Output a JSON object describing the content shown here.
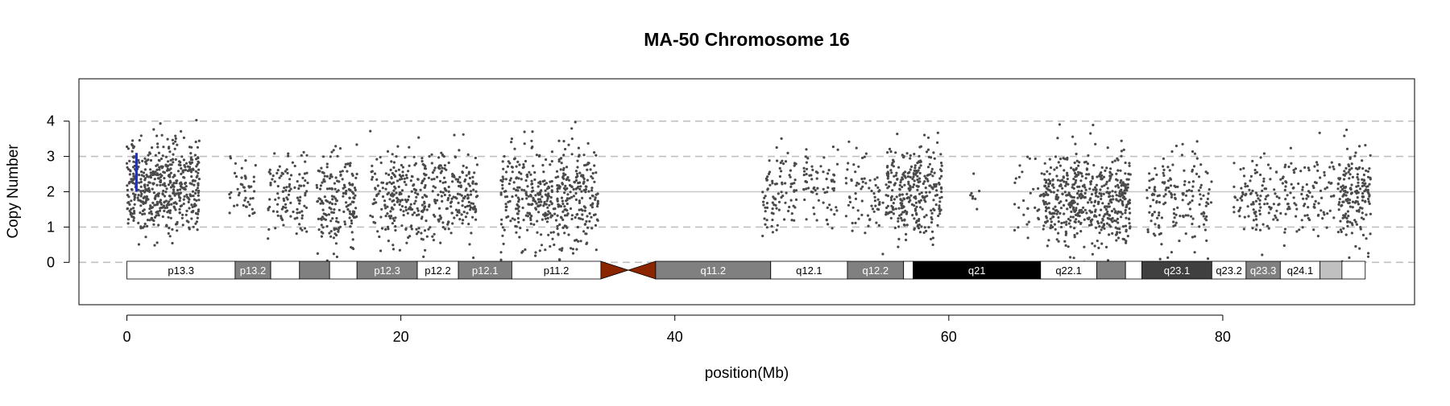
{
  "chart_data": {
    "type": "scatter",
    "title": "MA-50  Chromosome 16",
    "xlabel": "position(Mb)",
    "ylabel": "Copy Number",
    "xlim": [
      -3.5,
      94
    ],
    "ylim": [
      -1.2,
      5.2
    ],
    "x_ticks": [
      0,
      20,
      40,
      60,
      80
    ],
    "y_ticks": [
      0,
      1,
      2,
      3,
      4
    ],
    "x_tick_labels": [
      "0",
      "20",
      "40",
      "60",
      "80"
    ],
    "y_tick_labels": [
      "0",
      "1",
      "2",
      "3",
      "4"
    ],
    "gridlines": [
      {
        "y": 0,
        "style": "dashed"
      },
      {
        "y": 1,
        "style": "dashed"
      },
      {
        "y": 2,
        "style": "solid"
      },
      {
        "y": 3,
        "style": "dashed"
      },
      {
        "y": 4,
        "style": "dashed"
      }
    ],
    "point_color": "#4a4a4a",
    "segment_color": "#1c2fc4",
    "segments": [
      {
        "x": 0.7,
        "y0": 2.0,
        "y1": 3.1
      }
    ],
    "clusters": [
      {
        "x0": 0.0,
        "x1": 5.3,
        "n": 520,
        "mean": 2.1,
        "sd": 0.65
      },
      {
        "x0": 7.4,
        "x1": 9.4,
        "n": 45,
        "mean": 2.0,
        "sd": 0.5
      },
      {
        "x0": 10.3,
        "x1": 13.2,
        "n": 110,
        "mean": 1.9,
        "sd": 0.6
      },
      {
        "x0": 13.8,
        "x1": 16.8,
        "n": 180,
        "mean": 1.7,
        "sd": 0.75
      },
      {
        "x0": 17.7,
        "x1": 25.6,
        "n": 420,
        "mean": 1.95,
        "sd": 0.65
      },
      {
        "x0": 27.3,
        "x1": 34.4,
        "n": 460,
        "mean": 1.85,
        "sd": 0.75
      },
      {
        "x0": 46.4,
        "x1": 48.9,
        "n": 90,
        "mean": 2.0,
        "sd": 0.55
      },
      {
        "x0": 49.4,
        "x1": 51.9,
        "n": 70,
        "mean": 2.2,
        "sd": 0.55
      },
      {
        "x0": 52.5,
        "x1": 55.2,
        "n": 70,
        "mean": 1.9,
        "sd": 0.55
      },
      {
        "x0": 55.4,
        "x1": 59.5,
        "n": 300,
        "mean": 1.95,
        "sd": 0.6
      },
      {
        "x0": 61.3,
        "x1": 62.5,
        "n": 8,
        "mean": 2.0,
        "sd": 0.35
      },
      {
        "x0": 64.8,
        "x1": 66.8,
        "n": 30,
        "mean": 1.9,
        "sd": 0.55
      },
      {
        "x0": 66.9,
        "x1": 73.3,
        "n": 520,
        "mean": 1.8,
        "sd": 0.65
      },
      {
        "x0": 74.4,
        "x1": 79.2,
        "n": 160,
        "mean": 1.8,
        "sd": 0.65
      },
      {
        "x0": 80.8,
        "x1": 88.2,
        "n": 210,
        "mean": 1.9,
        "sd": 0.55
      },
      {
        "x0": 88.4,
        "x1": 90.8,
        "n": 180,
        "mean": 2.0,
        "sd": 0.7
      }
    ],
    "ideogram": {
      "centromere_color": "#8b2500",
      "bands": [
        {
          "name": "p13.3",
          "start": 0.0,
          "end": 7.9,
          "fill": "#ffffff",
          "label_color": "#000000",
          "show_label": true
        },
        {
          "name": "p13.2",
          "start": 7.9,
          "end": 10.5,
          "fill": "#808080",
          "label_color": "#ffffff",
          "show_label": true
        },
        {
          "name": "p13.13",
          "start": 10.5,
          "end": 12.6,
          "fill": "#ffffff",
          "label_color": "#000000",
          "show_label": false
        },
        {
          "name": "p13.12",
          "start": 12.6,
          "end": 14.8,
          "fill": "#808080",
          "label_color": "#ffffff",
          "show_label": false
        },
        {
          "name": "p13.11",
          "start": 14.8,
          "end": 16.8,
          "fill": "#ffffff",
          "label_color": "#000000",
          "show_label": false
        },
        {
          "name": "p12.3",
          "start": 16.8,
          "end": 21.2,
          "fill": "#808080",
          "label_color": "#ffffff",
          "show_label": true
        },
        {
          "name": "p12.2",
          "start": 21.2,
          "end": 24.2,
          "fill": "#ffffff",
          "label_color": "#000000",
          "show_label": true
        },
        {
          "name": "p12.1",
          "start": 24.2,
          "end": 28.1,
          "fill": "#808080",
          "label_color": "#ffffff",
          "show_label": true
        },
        {
          "name": "p11.2",
          "start": 28.1,
          "end": 34.6,
          "fill": "#ffffff",
          "label_color": "#000000",
          "show_label": true
        },
        {
          "name": "p11.1",
          "start": 34.6,
          "end": 36.6,
          "fill": "#8b2500",
          "label_color": "#ffffff",
          "show_label": false,
          "centromere": "p"
        },
        {
          "name": "q11.1",
          "start": 36.6,
          "end": 38.6,
          "fill": "#8b2500",
          "label_color": "#ffffff",
          "show_label": false,
          "centromere": "q"
        },
        {
          "name": "q11.2",
          "start": 38.6,
          "end": 47.0,
          "fill": "#808080",
          "label_color": "#ffffff",
          "show_label": true
        },
        {
          "name": "q12.1",
          "start": 47.0,
          "end": 52.6,
          "fill": "#ffffff",
          "label_color": "#000000",
          "show_label": true
        },
        {
          "name": "q12.2",
          "start": 52.6,
          "end": 56.7,
          "fill": "#808080",
          "label_color": "#ffffff",
          "show_label": true
        },
        {
          "name": "q13",
          "start": 56.7,
          "end": 57.4,
          "fill": "#ffffff",
          "label_color": "#000000",
          "show_label": false
        },
        {
          "name": "q21",
          "start": 57.4,
          "end": 66.7,
          "fill": "#000000",
          "label_color": "#ffffff",
          "show_label": true
        },
        {
          "name": "q22.1",
          "start": 66.7,
          "end": 70.8,
          "fill": "#ffffff",
          "label_color": "#000000",
          "show_label": true
        },
        {
          "name": "q22.2",
          "start": 70.8,
          "end": 72.9,
          "fill": "#808080",
          "label_color": "#ffffff",
          "show_label": false
        },
        {
          "name": "q22.3",
          "start": 72.9,
          "end": 74.1,
          "fill": "#ffffff",
          "label_color": "#000000",
          "show_label": false
        },
        {
          "name": "q23.1",
          "start": 74.1,
          "end": 79.2,
          "fill": "#404040",
          "label_color": "#ffffff",
          "show_label": true
        },
        {
          "name": "q23.2",
          "start": 79.2,
          "end": 81.7,
          "fill": "#ffffff",
          "label_color": "#000000",
          "show_label": true
        },
        {
          "name": "q23.3",
          "start": 81.7,
          "end": 84.2,
          "fill": "#808080",
          "label_color": "#ffffff",
          "show_label": true
        },
        {
          "name": "q24.1",
          "start": 84.2,
          "end": 87.1,
          "fill": "#ffffff",
          "label_color": "#000000",
          "show_label": true
        },
        {
          "name": "q24.2",
          "start": 87.1,
          "end": 88.7,
          "fill": "#c0c0c0",
          "label_color": "#000000",
          "show_label": false
        },
        {
          "name": "q24.3",
          "start": 88.7,
          "end": 90.4,
          "fill": "#ffffff",
          "label_color": "#000000",
          "show_label": false
        }
      ]
    }
  }
}
